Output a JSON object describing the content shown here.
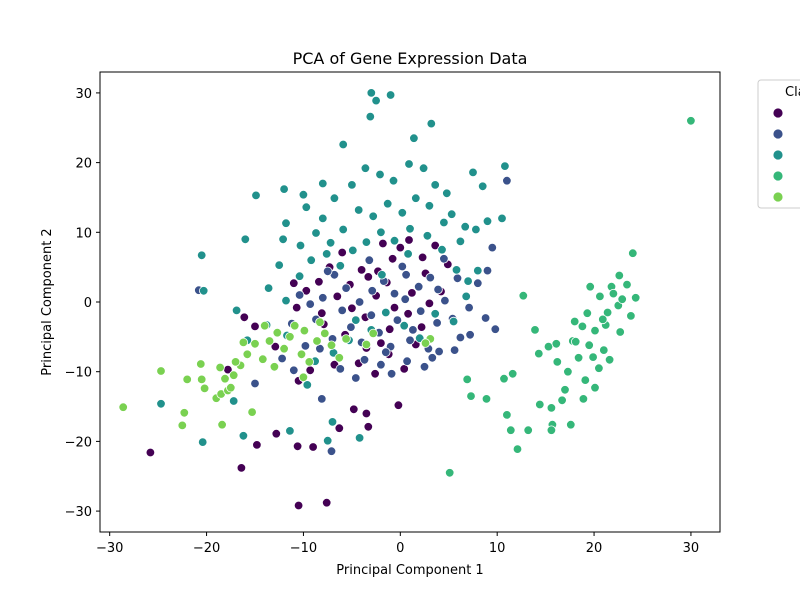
{
  "chart_data": {
    "type": "scatter",
    "title": "PCA of Gene Expression Data",
    "xlabel": "Principal Component 1",
    "ylabel": "Principal Component 2",
    "xlim": [
      -31,
      33
    ],
    "ylim": [
      -33,
      33
    ],
    "xticks": [
      -30,
      -20,
      -10,
      0,
      10,
      20,
      30
    ],
    "yticks": [
      -30,
      -20,
      -10,
      0,
      10,
      20,
      30
    ],
    "xtick_labels": [
      "−30",
      "−20",
      "−10",
      "0",
      "10",
      "20",
      "30"
    ],
    "ytick_labels": [
      "−30",
      "−20",
      "−10",
      "0",
      "10",
      "20",
      "30"
    ],
    "grid": false,
    "legend": {
      "title": "Cla",
      "placement": "outside-right"
    },
    "series": [
      {
        "color": "#440154",
        "points": [
          [
            -10.5,
            -29.2
          ],
          [
            -7.6,
            -28.8
          ],
          [
            -25.8,
            -21.6
          ],
          [
            -16.4,
            -23.8
          ],
          [
            -9.0,
            -20.8
          ],
          [
            -10.6,
            -20.7
          ],
          [
            -12.8,
            -18.9
          ],
          [
            -14.8,
            -20.5
          ],
          [
            -3.3,
            -17.9
          ],
          [
            -6.3,
            -18.1
          ],
          [
            -4.8,
            -15.4
          ],
          [
            -3.5,
            -16.0
          ],
          [
            -0.2,
            -14.8
          ],
          [
            -15.0,
            -3.5
          ],
          [
            -16.1,
            -2.2
          ],
          [
            -17.8,
            -9.7
          ],
          [
            -12.9,
            -6.4
          ],
          [
            -10.7,
            -0.8
          ],
          [
            -9.7,
            1.6
          ],
          [
            -8.1,
            -1.6
          ],
          [
            -6.5,
            0.8
          ],
          [
            -5.2,
            2.5
          ],
          [
            -4.0,
            4.6
          ],
          [
            -3.3,
            3.6
          ],
          [
            -2.5,
            0.9
          ],
          [
            -1.4,
            2.8
          ],
          [
            -0.8,
            6.2
          ],
          [
            0.0,
            7.8
          ],
          [
            0.9,
            8.9
          ],
          [
            2.3,
            6.4
          ],
          [
            3.6,
            8.1
          ],
          [
            4.9,
            5.4
          ],
          [
            -2.0,
            -5.9
          ],
          [
            -3.5,
            -6.6
          ],
          [
            -4.3,
            -8.8
          ],
          [
            -2.6,
            -10.3
          ],
          [
            -1.2,
            -7.5
          ],
          [
            0.4,
            -9.6
          ],
          [
            1.6,
            -6.1
          ],
          [
            -1.1,
            -3.9
          ],
          [
            -3.6,
            -2.2
          ],
          [
            -5.7,
            -4.7
          ],
          [
            -6.8,
            -9.0
          ],
          [
            -9.3,
            -9.8
          ],
          [
            -10.5,
            -11.3
          ],
          [
            -7.9,
            -3.2
          ],
          [
            -5.0,
            -0.9
          ],
          [
            0.8,
            -1.7
          ],
          [
            2.2,
            -3.6
          ],
          [
            -2.3,
            4.4
          ],
          [
            -7.3,
            5.0
          ],
          [
            -11.0,
            2.7
          ],
          [
            4.2,
            1.5
          ],
          [
            3.0,
            -0.2
          ],
          [
            1.2,
            1.3
          ],
          [
            -0.6,
            -0.8
          ],
          [
            -8.4,
            2.9
          ],
          [
            -6.0,
            7.1
          ],
          [
            -1.8,
            8.4
          ],
          [
            2.6,
            4.1
          ]
        ]
      },
      {
        "color": "#3b528b",
        "points": [
          [
            -20.8,
            1.7
          ],
          [
            -11.0,
            -9.8
          ],
          [
            -8.1,
            -13.9
          ],
          [
            -7.1,
            -21.4
          ],
          [
            -15.0,
            -11.7
          ],
          [
            -12.2,
            -8.1
          ],
          [
            -11.2,
            -3.1
          ],
          [
            -9.8,
            -6.3
          ],
          [
            -8.7,
            -2.5
          ],
          [
            -7.0,
            -5.3
          ],
          [
            -6.0,
            -1.2
          ],
          [
            -5.1,
            -3.6
          ],
          [
            -4.0,
            -5.8
          ],
          [
            -3.0,
            -1.9
          ],
          [
            -2.2,
            -4.4
          ],
          [
            -1.0,
            -6.4
          ],
          [
            -0.3,
            -2.6
          ],
          [
            0.5,
            0.4
          ],
          [
            1.3,
            -4.0
          ],
          [
            2.1,
            -1.3
          ],
          [
            2.9,
            -6.7
          ],
          [
            3.8,
            -3.0
          ],
          [
            4.6,
            0.2
          ],
          [
            5.4,
            -2.4
          ],
          [
            6.2,
            -5.1
          ],
          [
            7.1,
            -0.8
          ],
          [
            8.0,
            2.7
          ],
          [
            9.0,
            4.5
          ],
          [
            9.5,
            7.8
          ],
          [
            11.0,
            17.4
          ],
          [
            5.9,
            3.4
          ],
          [
            4.5,
            6.2
          ],
          [
            3.1,
            3.5
          ],
          [
            1.9,
            2.2
          ],
          [
            0.6,
            3.9
          ],
          [
            -0.6,
            1.2
          ],
          [
            -1.7,
            3.0
          ],
          [
            -2.9,
            1.6
          ],
          [
            -4.2,
            0.0
          ],
          [
            -5.6,
            2.0
          ],
          [
            -6.8,
            3.9
          ],
          [
            -8.0,
            0.6
          ],
          [
            -9.3,
            -0.3
          ],
          [
            -10.4,
            1.0
          ],
          [
            -3.7,
            -8.3
          ],
          [
            -2.0,
            -9.0
          ],
          [
            -0.9,
            -10.3
          ],
          [
            0.7,
            -8.5
          ],
          [
            2.5,
            -9.3
          ],
          [
            4.0,
            -7.1
          ],
          [
            5.6,
            -6.9
          ],
          [
            7.2,
            -4.7
          ],
          [
            8.8,
            -2.3
          ],
          [
            9.8,
            -3.9
          ],
          [
            -6.2,
            -9.6
          ],
          [
            -8.3,
            -6.7
          ],
          [
            -4.6,
            -10.9
          ],
          [
            -1.5,
            -7.2
          ],
          [
            1.0,
            -5.5
          ],
          [
            3.3,
            -8.0
          ],
          [
            -7.5,
            4.4
          ],
          [
            -3.2,
            6.0
          ],
          [
            0.2,
            5.1
          ],
          [
            3.9,
            1.8
          ]
        ]
      },
      {
        "color": "#21918c",
        "points": [
          [
            -3.0,
            30.0
          ],
          [
            -1.0,
            29.7
          ],
          [
            -2.5,
            28.9
          ],
          [
            -3.1,
            26.6
          ],
          [
            1.4,
            23.5
          ],
          [
            3.2,
            25.6
          ],
          [
            -5.9,
            22.6
          ],
          [
            -8.0,
            17.0
          ],
          [
            -10.0,
            15.4
          ],
          [
            -12.0,
            16.2
          ],
          [
            -14.9,
            15.3
          ],
          [
            -11.8,
            11.3
          ],
          [
            -9.7,
            13.6
          ],
          [
            -8.0,
            12.0
          ],
          [
            -6.8,
            14.9
          ],
          [
            -5.0,
            16.8
          ],
          [
            -3.6,
            19.2
          ],
          [
            -2.1,
            18.3
          ],
          [
            -0.7,
            17.4
          ],
          [
            0.9,
            19.8
          ],
          [
            2.4,
            19.2
          ],
          [
            3.6,
            16.8
          ],
          [
            4.8,
            15.6
          ],
          [
            5.3,
            12.6
          ],
          [
            6.7,
            10.8
          ],
          [
            7.5,
            18.6
          ],
          [
            8.5,
            16.6
          ],
          [
            10.8,
            19.5
          ],
          [
            10.5,
            12.0
          ],
          [
            9.0,
            11.6
          ],
          [
            7.8,
            10.4
          ],
          [
            6.2,
            8.7
          ],
          [
            4.5,
            11.4
          ],
          [
            3.0,
            13.8
          ],
          [
            1.6,
            14.9
          ],
          [
            0.2,
            12.8
          ],
          [
            -1.3,
            14.1
          ],
          [
            -2.8,
            12.3
          ],
          [
            -4.3,
            13.2
          ],
          [
            -5.9,
            10.4
          ],
          [
            -7.2,
            8.5
          ],
          [
            -8.7,
            9.9
          ],
          [
            -10.3,
            8.1
          ],
          [
            -12.1,
            9.0
          ],
          [
            -12.5,
            5.3
          ],
          [
            -13.6,
            2.0
          ],
          [
            -11.8,
            0.2
          ],
          [
            -10.4,
            3.7
          ],
          [
            -9.2,
            6.0
          ],
          [
            -7.6,
            6.9
          ],
          [
            -6.2,
            5.2
          ],
          [
            -4.9,
            7.4
          ],
          [
            -3.5,
            8.6
          ],
          [
            -2.0,
            10.0
          ],
          [
            -0.6,
            8.8
          ],
          [
            1.0,
            10.5
          ],
          [
            2.8,
            9.5
          ],
          [
            4.3,
            7.5
          ],
          [
            5.8,
            4.6
          ],
          [
            7.0,
            3.0
          ],
          [
            -16.0,
            9.0
          ],
          [
            -20.5,
            6.7
          ],
          [
            -20.3,
            1.6
          ],
          [
            -16.9,
            -1.2
          ],
          [
            -13.8,
            -3.3
          ],
          [
            -11.7,
            -4.8
          ],
          [
            -15.8,
            -5.5
          ],
          [
            -17.2,
            -14.2
          ],
          [
            -16.2,
            -19.2
          ],
          [
            -20.4,
            -20.1
          ],
          [
            -24.7,
            -14.6
          ],
          [
            -11.4,
            -18.5
          ],
          [
            -7.0,
            -17.2
          ],
          [
            -7.5,
            -19.9
          ],
          [
            -4.2,
            -19.5
          ],
          [
            -9.6,
            -11.9
          ],
          [
            -8.8,
            -8.5
          ],
          [
            -6.9,
            -7.3
          ],
          [
            -5.3,
            -5.5
          ],
          [
            -4.6,
            -2.6
          ],
          [
            -3.0,
            -4.0
          ],
          [
            -1.5,
            -1.5
          ],
          [
            0.4,
            -3.4
          ],
          [
            2.0,
            -5.2
          ],
          [
            3.6,
            -1.7
          ],
          [
            5.5,
            -2.8
          ],
          [
            6.8,
            0.8
          ],
          [
            8.0,
            4.5
          ],
          [
            -1.9,
            3.9
          ],
          [
            0.8,
            6.9
          ]
        ]
      },
      {
        "color": "#35b779",
        "points": [
          [
            30.0,
            26.0
          ],
          [
            24.0,
            7.0
          ],
          [
            22.6,
            3.8
          ],
          [
            23.4,
            2.5
          ],
          [
            24.3,
            0.6
          ],
          [
            21.8,
            2.2
          ],
          [
            19.6,
            2.2
          ],
          [
            22.5,
            -0.5
          ],
          [
            20.6,
            0.8
          ],
          [
            19.3,
            -1.6
          ],
          [
            23.8,
            -2.0
          ],
          [
            21.2,
            -3.3
          ],
          [
            20.1,
            -4.1
          ],
          [
            18.8,
            -3.5
          ],
          [
            17.8,
            -5.6
          ],
          [
            19.5,
            -6.2
          ],
          [
            21.0,
            -6.9
          ],
          [
            22.7,
            -4.3
          ],
          [
            18.4,
            -8.0
          ],
          [
            20.5,
            -9.5
          ],
          [
            19.1,
            -11.2
          ],
          [
            17.3,
            -10.0
          ],
          [
            16.2,
            -8.6
          ],
          [
            15.3,
            -6.4
          ],
          [
            17.0,
            -12.6
          ],
          [
            18.9,
            -13.9
          ],
          [
            20.1,
            -12.3
          ],
          [
            16.7,
            -14.1
          ],
          [
            15.6,
            -15.2
          ],
          [
            14.4,
            -14.7
          ],
          [
            15.7,
            -17.6
          ],
          [
            17.6,
            -17.6
          ],
          [
            15.6,
            -18.4
          ],
          [
            13.2,
            -18.4
          ],
          [
            12.1,
            -21.1
          ],
          [
            11.4,
            -18.4
          ],
          [
            11.0,
            -16.2
          ],
          [
            8.9,
            -13.9
          ],
          [
            7.3,
            -13.5
          ],
          [
            6.9,
            -11.1
          ],
          [
            11.6,
            -10.3
          ],
          [
            10.7,
            -11.0
          ],
          [
            14.3,
            -7.4
          ],
          [
            13.9,
            -4.0
          ],
          [
            12.7,
            0.9
          ],
          [
            21.4,
            -1.5
          ],
          [
            18.0,
            -2.8
          ],
          [
            22.0,
            1.2
          ],
          [
            20.9,
            -2.5
          ],
          [
            18.1,
            -5.7
          ],
          [
            19.9,
            -7.9
          ],
          [
            21.6,
            -8.3
          ],
          [
            5.1,
            -24.5
          ],
          [
            16.1,
            -6.0
          ],
          [
            22.9,
            0.4
          ]
        ]
      },
      {
        "color": "#7ad151",
        "points": [
          [
            -28.6,
            -15.1
          ],
          [
            -24.7,
            -9.9
          ],
          [
            -22.5,
            -17.7
          ],
          [
            -22.3,
            -15.9
          ],
          [
            -22.0,
            -11.1
          ],
          [
            -20.5,
            -11.1
          ],
          [
            -20.2,
            -12.4
          ],
          [
            -19.0,
            -13.8
          ],
          [
            -18.5,
            -13.2
          ],
          [
            -18.1,
            -11.0
          ],
          [
            -17.8,
            -12.7
          ],
          [
            -17.5,
            -12.3
          ],
          [
            -17.2,
            -10.5
          ],
          [
            -18.4,
            -17.6
          ],
          [
            -16.5,
            -9.1
          ],
          [
            -15.8,
            -7.5
          ],
          [
            -15.0,
            -6.0
          ],
          [
            -14.2,
            -8.2
          ],
          [
            -13.5,
            -5.6
          ],
          [
            -12.7,
            -4.4
          ],
          [
            -12.0,
            -6.7
          ],
          [
            -11.4,
            -5.0
          ],
          [
            -10.9,
            -3.4
          ],
          [
            -10.2,
            -7.5
          ],
          [
            -9.4,
            -8.6
          ],
          [
            -8.6,
            -5.6
          ],
          [
            -7.8,
            -4.5
          ],
          [
            -7.1,
            -6.2
          ],
          [
            -6.3,
            -8.0
          ],
          [
            -5.6,
            -5.3
          ],
          [
            -15.3,
            -15.8
          ],
          [
            -18.6,
            -9.4
          ],
          [
            -20.6,
            -8.9
          ],
          [
            -16.2,
            -5.8
          ],
          [
            -14.0,
            -3.4
          ],
          [
            -9.9,
            -4.1
          ],
          [
            -8.3,
            -2.9
          ],
          [
            -17.0,
            -8.6
          ],
          [
            -13.0,
            -9.3
          ],
          [
            -10.0,
            -10.8
          ],
          [
            -3.5,
            -6.1
          ],
          [
            -2.8,
            -4.5
          ],
          [
            3.1,
            -5.3
          ],
          [
            2.6,
            -5.9
          ]
        ]
      }
    ]
  }
}
